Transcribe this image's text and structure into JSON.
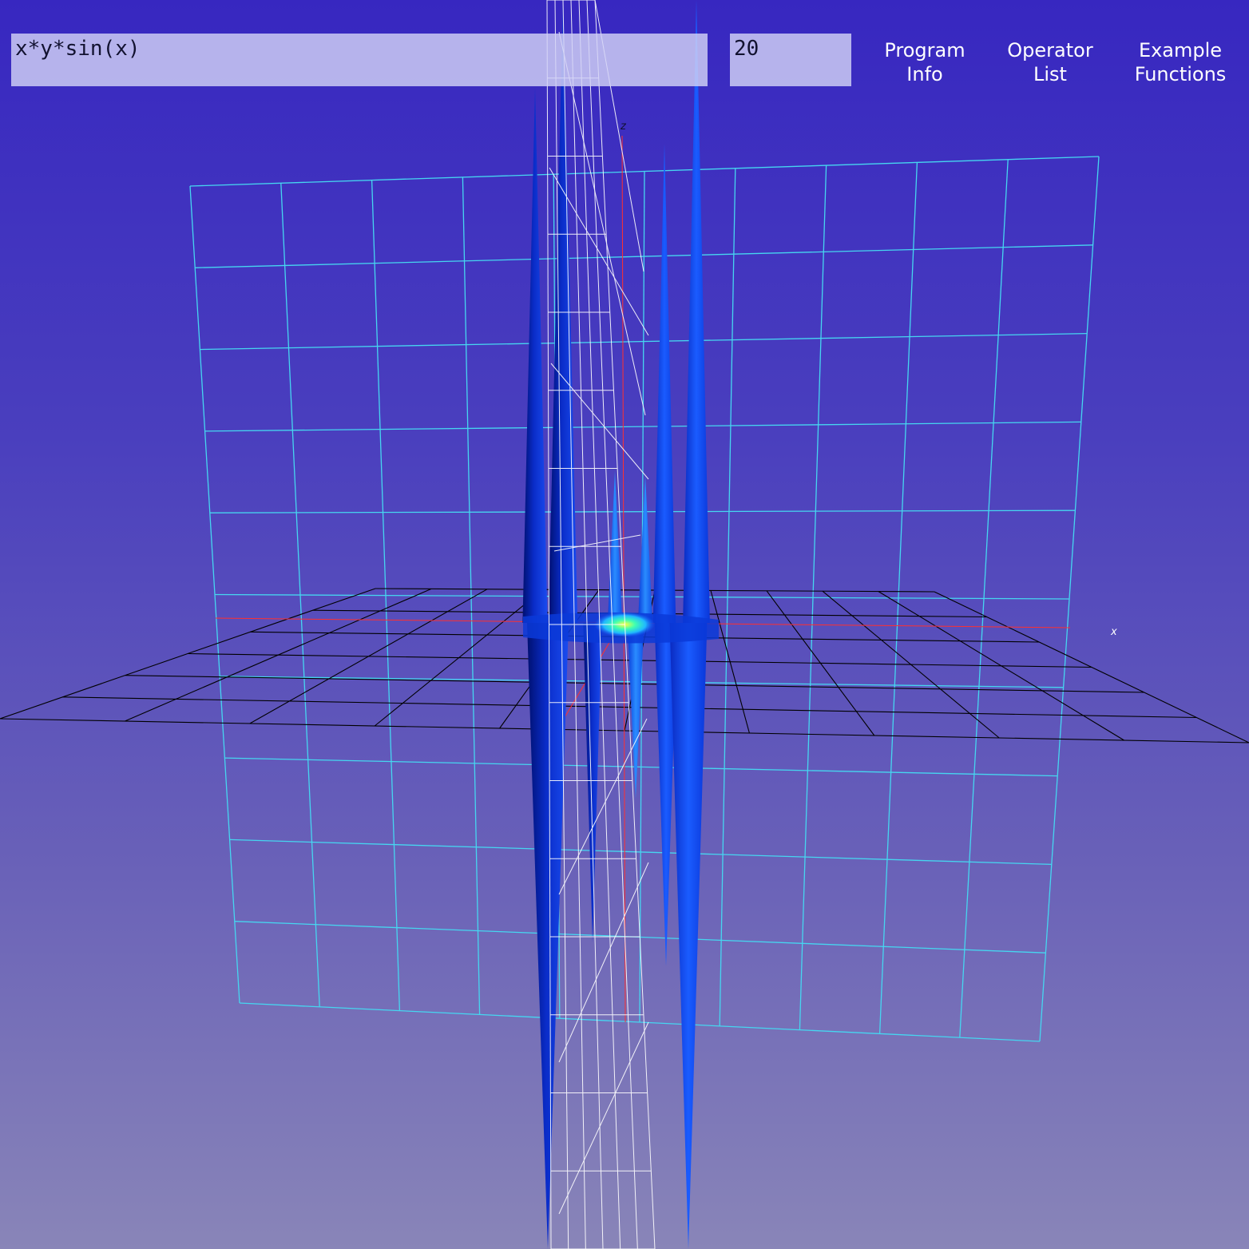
{
  "toolbar": {
    "function_value": "x*y*sin(x)",
    "resolution_value": "20",
    "buttons": [
      {
        "line1": "Program",
        "line2": "Info"
      },
      {
        "line1": "Operator",
        "line2": "List"
      },
      {
        "line1": "Example",
        "line2": "Functions"
      }
    ]
  },
  "viewport": {
    "axis_labels": {
      "x": "x",
      "z": "z"
    },
    "colors": {
      "background_top": "#3727c0",
      "background_bottom": "#8985b8",
      "xz_grid": "#46d6f0",
      "xy_grid": "#000000",
      "yz_grid": "#ffffff",
      "x_axis": "#ff3030",
      "surface_dark": "#00157a",
      "surface_mid": "#0a3ae0",
      "surface_light": "#1c6cff",
      "surface_hot": "#5ff0ff"
    }
  }
}
